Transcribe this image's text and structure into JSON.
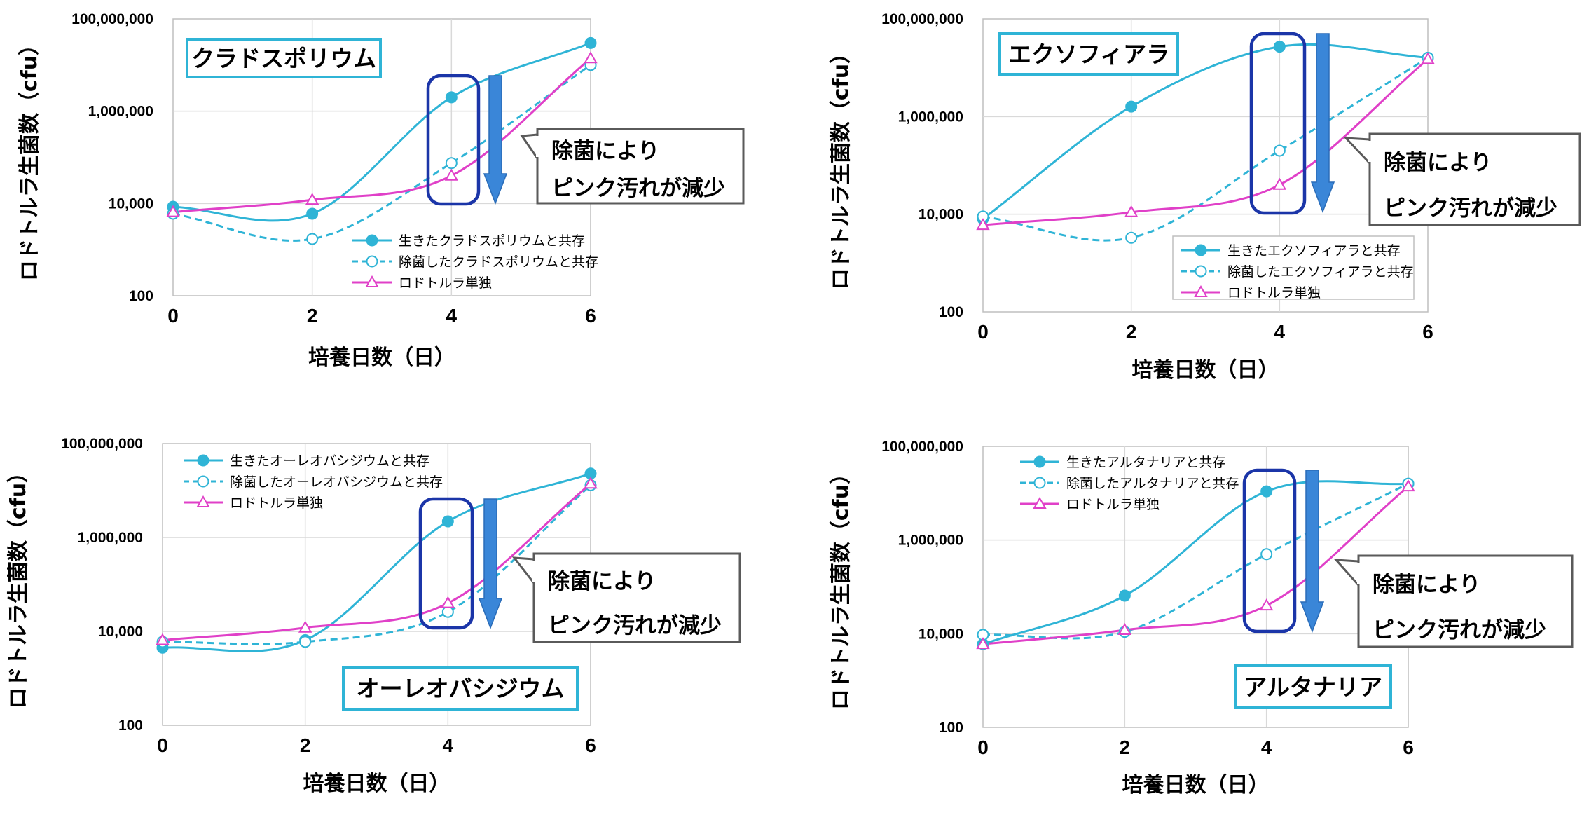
{
  "colors": {
    "alive": "#2FB4D6",
    "sterilized": "#2FB4D6",
    "alone": "#E040C8",
    "box": "#1B35A8",
    "arrow": "#3A86D8",
    "titleBorder": "#2FB4D6",
    "callout": "#5A5A5A",
    "grid": "#D9D9D9"
  },
  "chart_data": [
    {
      "type": "line",
      "title": "クラドスポリウム",
      "xlabel": "培養日数（日）",
      "ylabel": "ロドトルラ生菌数（cfu）",
      "yscale": "log",
      "ylim": [
        100,
        100000000
      ],
      "ytick_labels": [
        "100",
        "10,000",
        "1,000,000",
        "100,000,000"
      ],
      "xlim": [
        0,
        6
      ],
      "xtick_labels": [
        "0",
        "2",
        "4",
        "6"
      ],
      "callout": [
        "除菌により",
        "ピンク汚れが減少"
      ],
      "legend_position": "lower-right",
      "x": [
        0,
        2,
        4,
        6
      ],
      "series": [
        {
          "name": "生きたクラドスポリウムと共存",
          "values": [
            8500,
            6000,
            2000000,
            30000000
          ]
        },
        {
          "name": "除菌したクラドスポリウムと共存",
          "values": [
            6000,
            1700,
            75000,
            10000000
          ]
        },
        {
          "name": "ロドトルラ単独",
          "values": [
            6500,
            12000,
            40000,
            14000000
          ]
        }
      ]
    },
    {
      "type": "line",
      "title": "エクソフィアラ",
      "xlabel": "培養日数（日）",
      "ylabel": "ロドトルラ生菌数（cfu）",
      "yscale": "log",
      "ylim": [
        100,
        100000000
      ],
      "ytick_labels": [
        "100",
        "10,000",
        "1,000,000",
        "100,000,000"
      ],
      "xlim": [
        0,
        6
      ],
      "xtick_labels": [
        "0",
        "2",
        "4",
        "6"
      ],
      "callout": [
        "除菌により",
        "ピンク汚れが減少"
      ],
      "legend_position": "lower-right",
      "x": [
        0,
        2,
        4,
        6
      ],
      "series": [
        {
          "name": "生きたエクソフィアラと共存",
          "values": [
            8000,
            1600000,
            27000000,
            16000000
          ]
        },
        {
          "name": "除菌したエクソフィアラと共存",
          "values": [
            9000,
            3300,
            200000,
            16000000
          ]
        },
        {
          "name": "ロドトルラ単独",
          "values": [
            6000,
            11000,
            40000,
            15000000
          ]
        }
      ]
    },
    {
      "type": "line",
      "title": "オーレオバシジウム",
      "xlabel": "培養日数（日）",
      "ylabel": "ロドトルラ生菌数（cfu）",
      "yscale": "log",
      "ylim": [
        100,
        100000000
      ],
      "ytick_labels": [
        "100",
        "10,000",
        "1,000,000",
        "100,000,000"
      ],
      "xlim": [
        0,
        6
      ],
      "xtick_labels": [
        "0",
        "2",
        "4",
        "6"
      ],
      "callout": [
        "除菌により",
        "ピンク汚れが減少"
      ],
      "legend_position": "upper-left",
      "x": [
        0,
        2,
        4,
        6
      ],
      "series": [
        {
          "name": "生きたオーレオバシジウムと共存",
          "values": [
            4500,
            6500,
            2200000,
            23000000
          ]
        },
        {
          "name": "除菌したオーレオバシジウムと共存",
          "values": [
            6000,
            6000,
            26000,
            13000000
          ]
        },
        {
          "name": "ロドトルラ単独",
          "values": [
            6500,
            12000,
            40000,
            14000000
          ]
        }
      ]
    },
    {
      "type": "line",
      "title": "アルタナリア",
      "xlabel": "培養日数（日）",
      "ylabel": "ロドトルラ生菌数（cfu）",
      "yscale": "log",
      "ylim": [
        100,
        100000000
      ],
      "ytick_labels": [
        "100",
        "10,000",
        "1,000,000",
        "100,000,000"
      ],
      "xlim": [
        0,
        6
      ],
      "xtick_labels": [
        "0",
        "2",
        "4",
        "6"
      ],
      "callout": [
        "除菌により",
        "ピンク汚れが減少"
      ],
      "legend_position": "upper-left",
      "x": [
        0,
        2,
        4,
        6
      ],
      "series": [
        {
          "name": "生きたアルタナリアと共存",
          "values": [
            6000,
            65000,
            11000000,
            16000000
          ]
        },
        {
          "name": "除菌したアルタナリアと共存",
          "values": [
            9500,
            11000,
            500000,
            16000000
          ]
        },
        {
          "name": "ロドトルラ単独",
          "values": [
            6000,
            12000,
            40000,
            14000000
          ]
        }
      ]
    }
  ]
}
